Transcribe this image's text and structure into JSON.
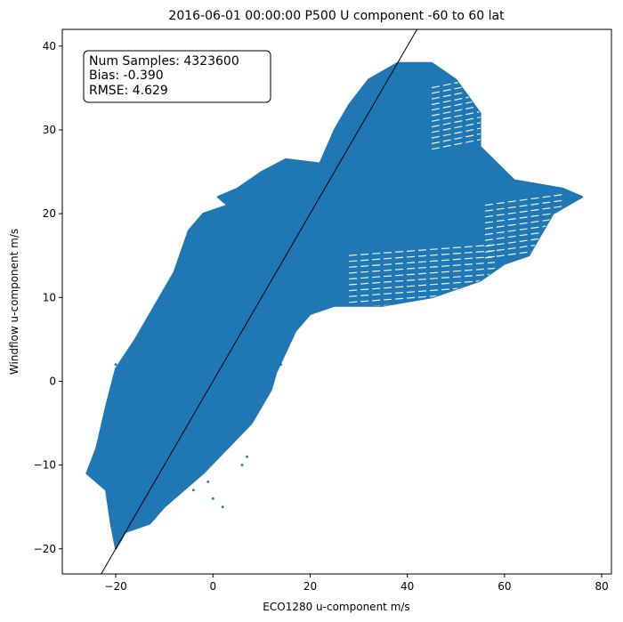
{
  "chart_data": {
    "type": "scatter",
    "title": "2016-06-01 00:00:00 P500 U component -60 to 60 lat",
    "xlabel": "ECO1280 u-component m/s",
    "ylabel": "Windflow u-component m/s",
    "xlim": [
      -31,
      82
    ],
    "ylim": [
      -23,
      42
    ],
    "xticks": [
      -20,
      0,
      20,
      40,
      60,
      80
    ],
    "yticks": [
      -20,
      -10,
      0,
      10,
      20,
      30,
      40
    ],
    "xtick_labels": [
      "−20",
      "0",
      "20",
      "40",
      "60",
      "80"
    ],
    "ytick_labels": [
      "−20",
      "−10",
      "0",
      "10",
      "20",
      "30",
      "40"
    ],
    "grid": false,
    "point_color": "#1f77b4",
    "reference_line": {
      "description": "y = x",
      "color": "#000000"
    },
    "stats": {
      "num_samples": "Num Samples: 4323600",
      "bias": "Bias: -0.390",
      "rmse": "RMSE: 4.629"
    },
    "point_cloud_outline": [
      [
        -20,
        -20
      ],
      [
        -18,
        -18
      ],
      [
        -13,
        -17
      ],
      [
        -10,
        -15
      ],
      [
        -6,
        -13
      ],
      [
        -2,
        -11
      ],
      [
        3,
        -8
      ],
      [
        8,
        -5
      ],
      [
        12,
        -1
      ],
      [
        13,
        1
      ],
      [
        17,
        6
      ],
      [
        20,
        8
      ],
      [
        25,
        9
      ],
      [
        35,
        9
      ],
      [
        45,
        10
      ],
      [
        55,
        12
      ],
      [
        60,
        14
      ],
      [
        65,
        15
      ],
      [
        70,
        20
      ],
      [
        76,
        22
      ],
      [
        72,
        23
      ],
      [
        62,
        24
      ],
      [
        55,
        28
      ],
      [
        55,
        32
      ],
      [
        50,
        36
      ],
      [
        45,
        38
      ],
      [
        38,
        38
      ],
      [
        32,
        36
      ],
      [
        28,
        33
      ],
      [
        25,
        30
      ],
      [
        22,
        26
      ],
      [
        15,
        26.5
      ],
      [
        10,
        25
      ],
      [
        5,
        23
      ],
      [
        1,
        22
      ],
      [
        3,
        21
      ],
      [
        -2,
        20
      ],
      [
        -5,
        18
      ],
      [
        -8,
        13
      ],
      [
        -12,
        9
      ],
      [
        -16,
        5
      ],
      [
        -20,
        1.5
      ],
      [
        -22,
        -3
      ],
      [
        -24,
        -8
      ],
      [
        -26,
        -11
      ],
      [
        -24,
        -12
      ],
      [
        -22,
        -13
      ],
      [
        -21,
        -17
      ]
    ],
    "stripe_regions": [
      {
        "xmin": 28,
        "xmax": 58,
        "ymin": 9,
        "ymax": 16
      },
      {
        "xmin": 45,
        "xmax": 56,
        "ymin": 28,
        "ymax": 36
      },
      {
        "xmin": 56,
        "xmax": 72,
        "ymin": 15,
        "ymax": 22
      }
    ],
    "outlier_points": [
      [
        -20,
        2
      ],
      [
        -24,
        -11
      ],
      [
        -22,
        -12
      ],
      [
        -15,
        -14
      ],
      [
        -8,
        -11
      ],
      [
        -4,
        -13
      ],
      [
        0,
        -14
      ],
      [
        2,
        -15
      ],
      [
        6,
        -10
      ],
      [
        -3,
        -8
      ],
      [
        -11,
        -7
      ],
      [
        -12,
        3
      ],
      [
        -9,
        5
      ],
      [
        -14,
        -16
      ],
      [
        -17,
        -17
      ],
      [
        -19,
        -19
      ],
      [
        10,
        2
      ],
      [
        12,
        0
      ],
      [
        14,
        2
      ],
      [
        -13,
        7
      ],
      [
        -10,
        7
      ],
      [
        -6,
        10
      ],
      [
        -7,
        11
      ],
      [
        -12,
        -5
      ],
      [
        -18,
        -9
      ],
      [
        4,
        -7
      ],
      [
        7,
        -9
      ],
      [
        -1,
        -12
      ]
    ]
  }
}
